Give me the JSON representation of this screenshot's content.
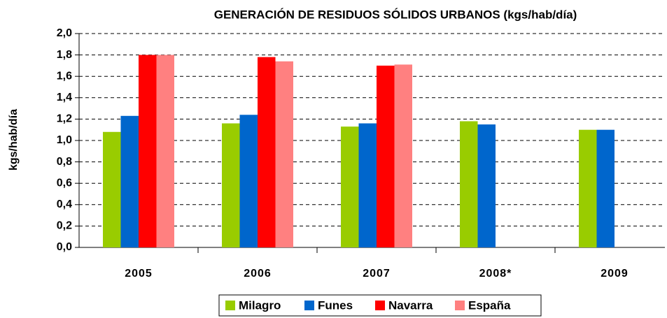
{
  "chart_data": {
    "type": "bar",
    "title": "GENERACIÓN DE RESIDUOS SÓLIDOS URBANOS (kgs/hab/día)",
    "y_label": "kgs/hab/día",
    "categories": [
      "2005",
      "2006",
      "2007",
      "2008*",
      "2009"
    ],
    "series": [
      {
        "name": "Milagro",
        "color": "#99cc00",
        "values": [
          1.08,
          1.16,
          1.13,
          1.18,
          1.1
        ]
      },
      {
        "name": "Funes",
        "color": "#0066cc",
        "values": [
          1.23,
          1.24,
          1.16,
          1.15,
          1.1
        ]
      },
      {
        "name": "Navarra",
        "color": "#ff0000",
        "values": [
          1.8,
          1.78,
          1.7,
          null,
          null
        ]
      },
      {
        "name": "España",
        "color": "#ff8080",
        "values": [
          1.8,
          1.74,
          1.71,
          null,
          null
        ]
      }
    ],
    "ylim": [
      0,
      2
    ],
    "yticks": [
      {
        "value": 0,
        "label": "0,0"
      },
      {
        "value": 0.2,
        "label": "0,2"
      },
      {
        "value": 0.4,
        "label": "0,4"
      },
      {
        "value": 0.6,
        "label": "0,6"
      },
      {
        "value": 0.8,
        "label": "0,8"
      },
      {
        "value": 1,
        "label": "1,0"
      },
      {
        "value": 1.2,
        "label": "1,2"
      },
      {
        "value": 1.4,
        "label": "1,4"
      },
      {
        "value": 1.6,
        "label": "1,6"
      },
      {
        "value": 1.8,
        "label": "1,8"
      },
      {
        "value": 2,
        "label": "2,0"
      }
    ],
    "grid": true,
    "legend": "bottom"
  }
}
